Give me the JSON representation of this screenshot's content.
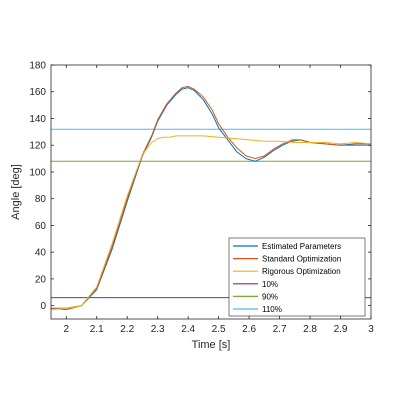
{
  "chart_data": {
    "type": "line",
    "xlabel": "Time [s]",
    "ylabel": "Angle [deg]",
    "xlim": [
      1.95,
      3.0
    ],
    "ylim": [
      -10,
      180
    ],
    "x_ticks": [
      2,
      2.1,
      2.2,
      2.3,
      2.4,
      2.5,
      2.6,
      2.7,
      2.8,
      2.9,
      3
    ],
    "x_tick_labels": [
      "2",
      "2.1",
      "2.2",
      "2.3",
      "2.4",
      "2.5",
      "2.6",
      "2.7",
      "2.8",
      "2.9",
      "3"
    ],
    "y_ticks": [
      0,
      20,
      40,
      60,
      80,
      100,
      120,
      140,
      160,
      180
    ],
    "y_tick_labels": [
      "0",
      "20",
      "40",
      "60",
      "80",
      "100",
      "120",
      "140",
      "160",
      "180"
    ],
    "grid": false,
    "legend_position": "bottom-right",
    "series": [
      {
        "name": "Estimated Parameters",
        "color": "#0072BD",
        "x": [
          1.95,
          2.0,
          2.05,
          2.1,
          2.15,
          2.2,
          2.25,
          2.28,
          2.3,
          2.33,
          2.36,
          2.38,
          2.4,
          2.42,
          2.45,
          2.48,
          2.5,
          2.53,
          2.56,
          2.59,
          2.62,
          2.65,
          2.68,
          2.71,
          2.74,
          2.77,
          2.8,
          2.85,
          2.9,
          2.95,
          3.0
        ],
        "y": [
          -2,
          -2,
          0,
          12,
          42,
          78,
          112,
          126,
          138,
          150,
          158,
          162,
          163,
          161,
          154,
          143,
          133,
          124,
          115,
          110,
          108,
          111,
          116,
          120,
          123,
          124,
          122,
          121,
          120,
          121,
          121
        ]
      },
      {
        "name": "Standard Optimization",
        "color": "#D95319",
        "x": [
          1.95,
          2.0,
          2.05,
          2.1,
          2.15,
          2.2,
          2.25,
          2.28,
          2.3,
          2.33,
          2.36,
          2.38,
          2.4,
          2.42,
          2.45,
          2.48,
          2.5,
          2.53,
          2.56,
          2.59,
          2.62,
          2.65,
          2.68,
          2.71,
          2.74,
          2.77,
          2.8,
          2.85,
          2.9,
          2.95,
          3.0
        ],
        "y": [
          -2,
          -3,
          0,
          13,
          44,
          80,
          113,
          127,
          139,
          151,
          159,
          163,
          164,
          162,
          156,
          146,
          136,
          126,
          118,
          112,
          110,
          112,
          117,
          121,
          124,
          124,
          122,
          121,
          120,
          120,
          120
        ]
      },
      {
        "name": "Rigorous Optimization",
        "color": "#EDB120",
        "x": [
          1.95,
          2.0,
          2.05,
          2.1,
          2.15,
          2.2,
          2.25,
          2.28,
          2.3,
          2.32,
          2.34,
          2.36,
          2.38,
          2.4,
          2.45,
          2.5,
          2.55,
          2.6,
          2.65,
          2.7,
          2.75,
          2.8,
          2.85,
          2.9,
          2.95,
          3.0
        ],
        "y": [
          -3,
          -2,
          0,
          14,
          46,
          82,
          113,
          122,
          125,
          126,
          126,
          127,
          127,
          127,
          127,
          126,
          125,
          124,
          123,
          123,
          122,
          122,
          122,
          121,
          122,
          121
        ]
      },
      {
        "name": "10%",
        "color": "#7E2F8E",
        "x": [
          1.95,
          3.0
        ],
        "y": [
          6,
          6
        ]
      },
      {
        "name": "90%",
        "color": "#77AC30",
        "x": [
          1.95,
          3.0
        ],
        "y": [
          108,
          108
        ]
      },
      {
        "name": "110%",
        "color": "#4DBEEE",
        "x": [
          1.95,
          3.0
        ],
        "y": [
          132,
          132
        ]
      }
    ]
  }
}
